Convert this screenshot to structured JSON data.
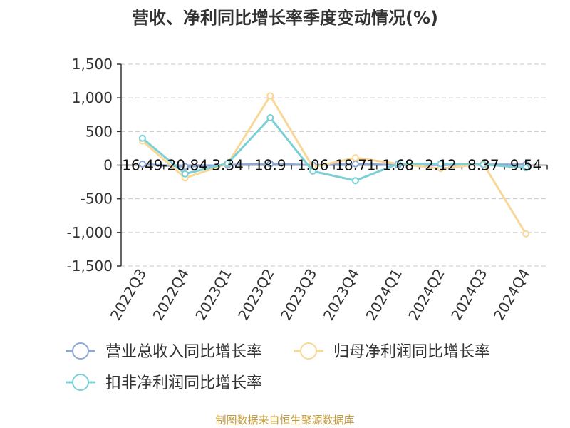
{
  "chart_data": {
    "type": "line",
    "title": "营收、净利同比增长率季度变动情况(%)",
    "categories": [
      "2022Q3",
      "2022Q4",
      "2023Q1",
      "2023Q2",
      "2023Q3",
      "2023Q4",
      "2024Q1",
      "2024Q2",
      "2024Q3",
      "2024Q4"
    ],
    "ylim": [
      -1500,
      1500
    ],
    "yticks": [
      -1500,
      -1000,
      -500,
      0,
      500,
      1000,
      1500
    ],
    "ytick_labels": [
      "-1,500",
      "-1,000",
      "-500",
      "0",
      "500",
      "1,000",
      "1,500"
    ],
    "grid": "horizontal dashed",
    "legend_position": "bottom",
    "series": [
      {
        "name": "营业总收入同比增长率",
        "color": "#8ea8d6",
        "values": [
          16.49,
          -20.84,
          3.34,
          18.9,
          1.06,
          18.71,
          1.68,
          2.12,
          8.37,
          9.54
        ],
        "labels": [
          "16.49",
          "-20.84",
          "3.34",
          "18.9",
          "1.06",
          "18.71",
          "1.68",
          "2.12",
          "8.37",
          "9.54"
        ]
      },
      {
        "name": "归母净利润同比增长率",
        "color": "#f8d898",
        "values": [
          360,
          -190,
          20,
          1030,
          -30,
          110,
          20,
          -50,
          20,
          -1020
        ]
      },
      {
        "name": "扣非净利润同比增长率",
        "color": "#7ccfd5",
        "values": [
          400,
          -130,
          25,
          705,
          -90,
          -230,
          20,
          20,
          10,
          -40
        ]
      }
    ],
    "source": "制图数据来自恒生聚源数据库"
  }
}
